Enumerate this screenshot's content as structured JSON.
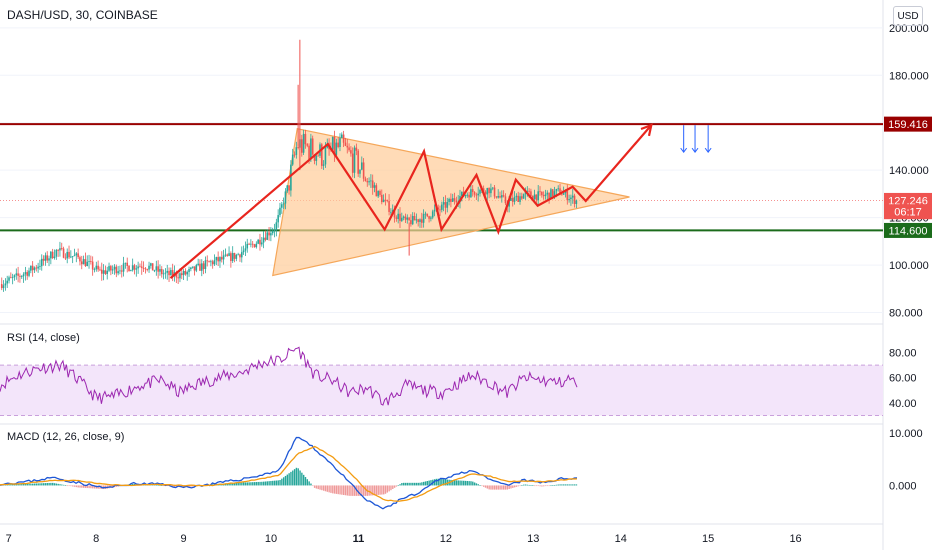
{
  "header": {
    "symbol": "DASH/USD, 30, COINBASE",
    "currency": "USD"
  },
  "colors": {
    "up": "#26a69a",
    "down": "#ef5350",
    "resistance": "#990000",
    "support": "#1b6b1b",
    "pattern": "#e8251e",
    "triangle_fill": "#ffcc99",
    "triangle_stroke": "#f5a75a",
    "rsi": "#9c27b0",
    "rsi_band": "#f3e5fa",
    "macd": "#1e57d6",
    "signal": "#f39c12",
    "arrows": "#2962ff",
    "grid": "#f0f3fa",
    "axis": "#131722"
  },
  "chart_data": [
    {
      "type": "candlestick",
      "title": "DASH/USD, 30, COINBASE",
      "x_ticks": [
        "7",
        "8",
        "9",
        "10",
        "11",
        "12",
        "13",
        "14",
        "15",
        "16"
      ],
      "x_range": [
        6.9,
        17.0
      ],
      "y_ticks": [
        "80.000",
        "100.000",
        "120.000",
        "140.000",
        "160.000",
        "180.000",
        "200.000"
      ],
      "ylim": [
        76,
        205
      ],
      "price_labels": [
        {
          "label": "159.416",
          "value": 159.416,
          "color": "#990000"
        },
        {
          "label": "127.246",
          "value": 127.246,
          "color": "#ef5350"
        },
        {
          "label": "06:17",
          "value": 122.5,
          "color": "#ef5350"
        },
        {
          "label": "114.600",
          "value": 114.6,
          "color": "#1b6b1b"
        }
      ],
      "horizontal_lines": [
        {
          "name": "resistance",
          "value": 159.416
        },
        {
          "name": "support",
          "value": 114.6
        }
      ],
      "triangle": [
        [
          10.3,
          157.5
        ],
        [
          10.02,
          95.6
        ],
        [
          14.1,
          128.7
        ]
      ],
      "zigzag_path": [
        [
          8.85,
          94.5
        ],
        [
          10.65,
          151
        ],
        [
          11.3,
          115
        ],
        [
          11.75,
          148
        ],
        [
          11.95,
          115
        ],
        [
          12.35,
          138
        ],
        [
          12.6,
          114
        ],
        [
          12.8,
          136
        ],
        [
          13.05,
          125
        ],
        [
          13.45,
          133
        ],
        [
          13.6,
          127
        ],
        [
          14.35,
          159
        ]
      ],
      "down_arrows": [
        14.72,
        14.85,
        15.0
      ],
      "closes_anchors": [
        [
          6.9,
          92
        ],
        [
          7.1,
          95
        ],
        [
          7.3,
          99
        ],
        [
          7.55,
          106
        ],
        [
          7.8,
          103
        ],
        [
          8.05,
          97
        ],
        [
          8.3,
          99
        ],
        [
          8.55,
          100
        ],
        [
          8.8,
          96
        ],
        [
          9.0,
          96
        ],
        [
          9.3,
          101
        ],
        [
          9.6,
          104
        ],
        [
          9.85,
          110
        ],
        [
          10.05,
          116
        ],
        [
          10.2,
          134
        ],
        [
          10.3,
          151
        ],
        [
          10.45,
          149
        ],
        [
          10.6,
          146
        ],
        [
          10.8,
          150
        ],
        [
          11.0,
          142
        ],
        [
          11.2,
          131
        ],
        [
          11.4,
          122
        ],
        [
          11.55,
          118
        ],
        [
          11.75,
          120
        ],
        [
          11.95,
          124
        ],
        [
          12.1,
          128
        ],
        [
          12.3,
          131
        ],
        [
          12.5,
          132
        ],
        [
          12.7,
          126
        ],
        [
          12.9,
          130
        ],
        [
          13.1,
          129
        ],
        [
          13.3,
          131
        ],
        [
          13.5,
          127
        ]
      ],
      "wicks": [
        {
          "x": 10.33,
          "high": 195,
          "low": 140
        },
        {
          "x": 10.31,
          "high": 176,
          "low": 150
        },
        {
          "x": 11.58,
          "high": 118,
          "low": 104
        }
      ],
      "last_close": 127.246
    },
    {
      "type": "line",
      "title": "RSI (14, close)",
      "y_ticks": [
        "40.00",
        "60.00",
        "80.00"
      ],
      "ylim": [
        28,
        90
      ],
      "band": [
        30,
        70
      ],
      "anchors": [
        [
          6.9,
          54
        ],
        [
          7.1,
          62
        ],
        [
          7.35,
          68
        ],
        [
          7.6,
          70
        ],
        [
          7.8,
          58
        ],
        [
          8.0,
          44
        ],
        [
          8.2,
          45
        ],
        [
          8.5,
          54
        ],
        [
          8.75,
          58
        ],
        [
          8.95,
          48
        ],
        [
          9.15,
          55
        ],
        [
          9.4,
          60
        ],
        [
          9.65,
          64
        ],
        [
          9.9,
          72
        ],
        [
          10.1,
          74
        ],
        [
          10.3,
          84
        ],
        [
          10.5,
          62
        ],
        [
          10.7,
          58
        ],
        [
          10.9,
          48
        ],
        [
          11.1,
          52
        ],
        [
          11.3,
          40
        ],
        [
          11.55,
          54
        ],
        [
          11.75,
          50
        ],
        [
          11.95,
          48
        ],
        [
          12.15,
          56
        ],
        [
          12.3,
          62
        ],
        [
          12.5,
          56
        ],
        [
          12.7,
          48
        ],
        [
          12.9,
          60
        ],
        [
          13.1,
          58
        ],
        [
          13.3,
          56
        ],
        [
          13.45,
          60
        ],
        [
          13.5,
          49
        ]
      ]
    },
    {
      "type": "line",
      "title": "MACD (12, 26, close, 9)",
      "y_ticks": [
        "0.000",
        "10.000"
      ],
      "ylim": [
        -7,
        11
      ],
      "series": [
        {
          "name": "MACD",
          "anchors": [
            [
              6.9,
              0.3
            ],
            [
              7.2,
              0.7
            ],
            [
              7.5,
              1.5
            ],
            [
              7.8,
              0.5
            ],
            [
              8.1,
              -0.5
            ],
            [
              8.4,
              0.3
            ],
            [
              8.7,
              0.3
            ],
            [
              9.0,
              -0.4
            ],
            [
              9.3,
              0.2
            ],
            [
              9.6,
              1.0
            ],
            [
              9.9,
              2.0
            ],
            [
              10.1,
              3.0
            ],
            [
              10.3,
              9.5
            ],
            [
              10.5,
              7.0
            ],
            [
              10.7,
              4.0
            ],
            [
              10.9,
              0.5
            ],
            [
              11.1,
              -3.0
            ],
            [
              11.3,
              -4.5
            ],
            [
              11.5,
              -2.5
            ],
            [
              11.7,
              -1.5
            ],
            [
              11.9,
              1.0
            ],
            [
              12.1,
              2.0
            ],
            [
              12.3,
              3.0
            ],
            [
              12.5,
              1.0
            ],
            [
              12.7,
              0.0
            ],
            [
              12.9,
              1.0
            ],
            [
              13.1,
              0.5
            ],
            [
              13.3,
              1.2
            ],
            [
              13.5,
              1.5
            ]
          ]
        },
        {
          "name": "Signal",
          "anchors": [
            [
              6.9,
              0.2
            ],
            [
              7.2,
              0.4
            ],
            [
              7.5,
              1.0
            ],
            [
              7.8,
              0.9
            ],
            [
              8.1,
              0.2
            ],
            [
              8.4,
              0.0
            ],
            [
              8.7,
              0.2
            ],
            [
              9.0,
              0.0
            ],
            [
              9.3,
              0.0
            ],
            [
              9.6,
              0.5
            ],
            [
              9.9,
              1.3
            ],
            [
              10.1,
              2.0
            ],
            [
              10.3,
              6.0
            ],
            [
              10.5,
              7.5
            ],
            [
              10.7,
              5.5
            ],
            [
              10.9,
              2.5
            ],
            [
              11.1,
              -1.0
            ],
            [
              11.3,
              -2.8
            ],
            [
              11.5,
              -3.0
            ],
            [
              11.7,
              -2.0
            ],
            [
              11.9,
              -0.3
            ],
            [
              12.1,
              1.0
            ],
            [
              12.3,
              2.2
            ],
            [
              12.5,
              1.8
            ],
            [
              12.7,
              0.8
            ],
            [
              12.9,
              0.8
            ],
            [
              13.1,
              0.7
            ],
            [
              13.3,
              1.0
            ],
            [
              13.5,
              1.3
            ]
          ]
        }
      ]
    }
  ]
}
